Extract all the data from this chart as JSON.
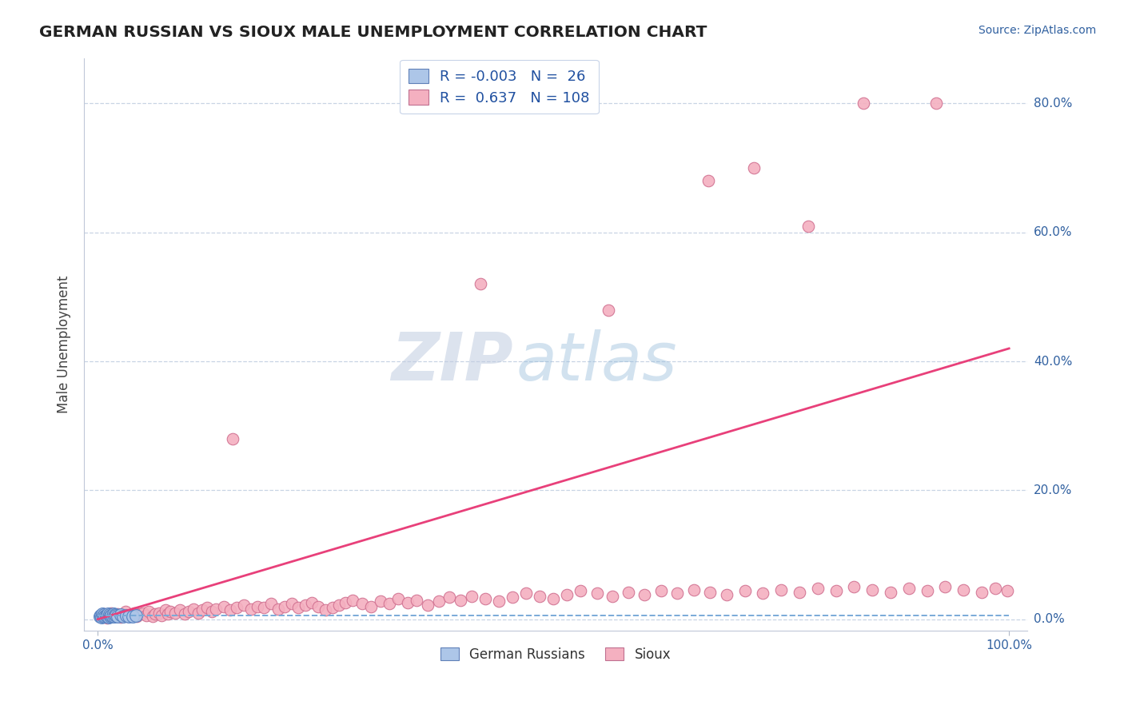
{
  "title": "GERMAN RUSSIAN VS SIOUX MALE UNEMPLOYMENT CORRELATION CHART",
  "source": "Source: ZipAtlas.com",
  "ylabel": "Male Unemployment",
  "legend_label1": "German Russians",
  "legend_label2": "Sioux",
  "legend_r1": "-0.003",
  "legend_n1": "26",
  "legend_r2": "0.637",
  "legend_n2": "108",
  "watermark_zip": "ZIP",
  "watermark_atlas": "atlas",
  "color_blue_fill": "#adc6e8",
  "color_blue_edge": "#5580c0",
  "color_pink_fill": "#f4b0c0",
  "color_pink_edge": "#d07090",
  "color_line_blue": "#7aaad8",
  "color_line_pink": "#e8407a",
  "background": "#ffffff",
  "grid_color": "#c8d4e4",
  "sioux_x": [
    0.004,
    0.007,
    0.01,
    0.012,
    0.015,
    0.018,
    0.022,
    0.025,
    0.028,
    0.03,
    0.033,
    0.036,
    0.04,
    0.043,
    0.046,
    0.05,
    0.053,
    0.056,
    0.06,
    0.063,
    0.067,
    0.07,
    0.074,
    0.077,
    0.08,
    0.085,
    0.09,
    0.095,
    0.1,
    0.105,
    0.11,
    0.115,
    0.12,
    0.125,
    0.13,
    0.138,
    0.145,
    0.152,
    0.16,
    0.168,
    0.175,
    0.182,
    0.19,
    0.198,
    0.205,
    0.213,
    0.22,
    0.228,
    0.235,
    0.242,
    0.25,
    0.258,
    0.265,
    0.272,
    0.28,
    0.29,
    0.3,
    0.31,
    0.32,
    0.33,
    0.34,
    0.35,
    0.362,
    0.374,
    0.386,
    0.398,
    0.41,
    0.425,
    0.44,
    0.455,
    0.47,
    0.485,
    0.5,
    0.515,
    0.53,
    0.548,
    0.565,
    0.582,
    0.6,
    0.618,
    0.636,
    0.654,
    0.672,
    0.69,
    0.71,
    0.73,
    0.75,
    0.77,
    0.79,
    0.81,
    0.83,
    0.85,
    0.87,
    0.89,
    0.91,
    0.93,
    0.95,
    0.97,
    0.985,
    0.998,
    0.148,
    0.42,
    0.72,
    0.84,
    0.67,
    0.92,
    0.56,
    0.78
  ],
  "sioux_y": [
    0.005,
    0.008,
    0.002,
    0.006,
    0.01,
    0.004,
    0.008,
    0.003,
    0.006,
    0.012,
    0.004,
    0.007,
    0.009,
    0.005,
    0.008,
    0.01,
    0.006,
    0.012,
    0.004,
    0.008,
    0.01,
    0.006,
    0.014,
    0.008,
    0.012,
    0.01,
    0.015,
    0.008,
    0.012,
    0.016,
    0.01,
    0.014,
    0.018,
    0.012,
    0.016,
    0.02,
    0.014,
    0.018,
    0.022,
    0.016,
    0.02,
    0.018,
    0.024,
    0.016,
    0.02,
    0.024,
    0.018,
    0.022,
    0.026,
    0.02,
    0.014,
    0.018,
    0.022,
    0.026,
    0.03,
    0.025,
    0.02,
    0.028,
    0.024,
    0.032,
    0.026,
    0.03,
    0.022,
    0.028,
    0.034,
    0.03,
    0.036,
    0.032,
    0.028,
    0.034,
    0.04,
    0.036,
    0.032,
    0.038,
    0.044,
    0.04,
    0.036,
    0.042,
    0.038,
    0.044,
    0.04,
    0.046,
    0.042,
    0.038,
    0.044,
    0.04,
    0.046,
    0.042,
    0.048,
    0.044,
    0.05,
    0.046,
    0.042,
    0.048,
    0.044,
    0.05,
    0.046,
    0.042,
    0.048,
    0.044,
    0.28,
    0.52,
    0.7,
    0.8,
    0.68,
    0.8,
    0.48,
    0.61
  ],
  "gr_x": [
    0.002,
    0.003,
    0.004,
    0.005,
    0.006,
    0.007,
    0.008,
    0.009,
    0.01,
    0.011,
    0.012,
    0.013,
    0.014,
    0.015,
    0.016,
    0.017,
    0.018,
    0.019,
    0.02,
    0.022,
    0.025,
    0.028,
    0.031,
    0.034,
    0.038,
    0.042
  ],
  "gr_y": [
    0.004,
    0.006,
    0.003,
    0.008,
    0.005,
    0.007,
    0.004,
    0.006,
    0.005,
    0.008,
    0.003,
    0.007,
    0.005,
    0.006,
    0.004,
    0.008,
    0.005,
    0.007,
    0.006,
    0.005,
    0.007,
    0.004,
    0.006,
    0.005,
    0.004,
    0.006
  ],
  "xlim": [
    0.0,
    1.0
  ],
  "ylim": [
    0.0,
    0.85
  ],
  "y_ticks": [
    0.0,
    0.2,
    0.4,
    0.6,
    0.8
  ],
  "y_tick_labels": [
    "0.0%",
    "20.0%",
    "40.0%",
    "60.0%",
    "80.0%"
  ],
  "x_tick_labels": [
    "0.0%",
    "100.0%"
  ],
  "sioux_trend_x0": 0.0,
  "sioux_trend_y0": 0.0,
  "sioux_trend_x1": 1.0,
  "sioux_trend_y1": 0.42
}
